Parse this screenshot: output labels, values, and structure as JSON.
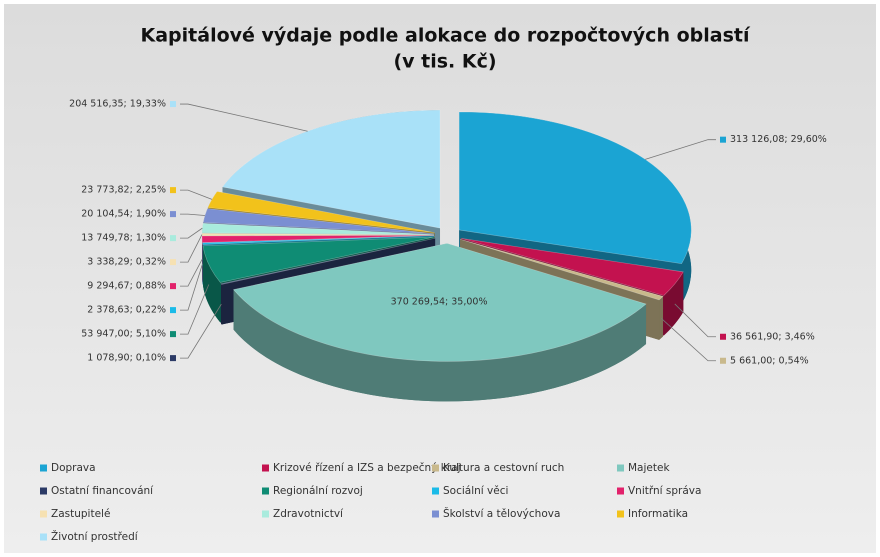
{
  "chart_data": {
    "type": "pie",
    "title": "Kapitálové výdaje podle alokace do rozpočtových oblastí",
    "subtitle": "(v tis. Kč)",
    "categories": [
      "Doprava",
      "Krizové řízení a IZS a bezpečný kraj",
      "Kultura a cestovní ruch",
      "Majetek",
      "Ostatní financování",
      "Regionální rozvoj",
      "Sociální věci",
      "Vnitřní správa",
      "Zastupitelé",
      "Zdravotnictví",
      "Školství a tělovýchova",
      "Informatika",
      "Životní prostředí"
    ],
    "values": [
      313126.08,
      36561.9,
      5661.0,
      370269.54,
      1078.9,
      53947.0,
      2378.63,
      9294.67,
      3338.29,
      13749.78,
      20104.54,
      23773.82,
      204516.35
    ],
    "value_labels": [
      "313 126,08; 29,60%",
      "36 561,90; 3,46%",
      "5 661,00; 0,54%",
      "370 269,54; 35,00%",
      "1 078,90; 0,10%",
      "53 947,00; 5,10%",
      "2 378,63; 0,22%",
      "9 294,67; 0,88%",
      "3 338,29; 0,32%",
      "13 749,78; 1,30%",
      "20 104,54; 1,90%",
      "23 773,82; 2,25%",
      "204 516,35; 19,33%"
    ],
    "colors": [
      "#1ba4d3",
      "#c3124f",
      "#c9b98c",
      "#7fc8bf",
      "#2b3a66",
      "#0f8c74",
      "#1bbbe8",
      "#e2226b",
      "#f6e1b2",
      "#a9ebdd",
      "#7b8fd2",
      "#f2c21b",
      "#a9e1f8"
    ],
    "legend": "bottom"
  }
}
